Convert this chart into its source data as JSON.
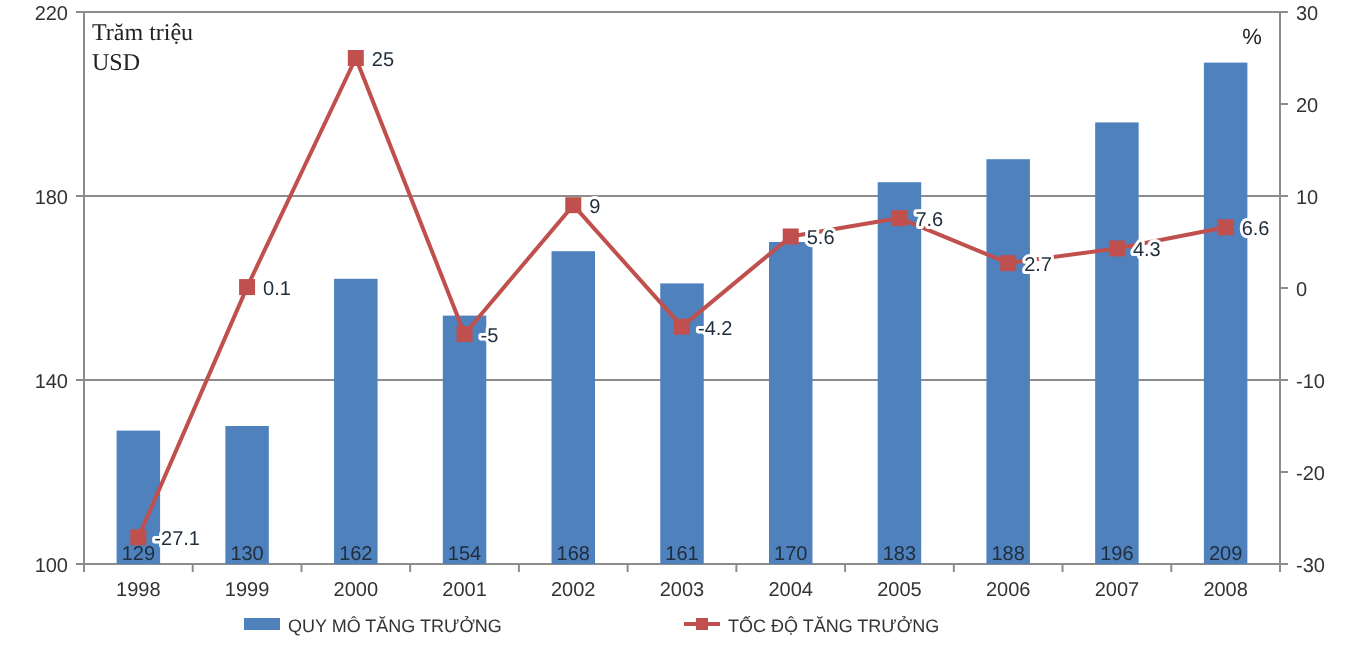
{
  "chart_data": {
    "type": "bar",
    "ylabel": "Trăm triệu USD",
    "y2label": "%",
    "categories": [
      "1998",
      "1999",
      "2000",
      "2001",
      "2002",
      "2003",
      "2004",
      "2005",
      "2006",
      "2007",
      "2008"
    ],
    "series": [
      {
        "name": "QUY MÔ TĂNG TRƯỞNG",
        "color": "#4f81bd",
        "values": [
          129,
          130,
          162,
          154,
          168,
          161,
          170,
          183,
          188,
          196,
          209
        ]
      },
      {
        "name": "TỐC ĐỘ TĂNG TRƯỞNG",
        "type": "line",
        "axis": "y2",
        "color": "#c0504d",
        "marker": "square",
        "values": [
          -27.1,
          0.1,
          25,
          -5,
          9,
          -4.2,
          5.6,
          7.6,
          2.7,
          4.3,
          6.6
        ]
      }
    ],
    "ylim": [
      100,
      220
    ],
    "yticks": [
      100,
      140,
      180,
      220
    ],
    "y2lim": [
      -30,
      30
    ],
    "y2ticks": [
      -30,
      -20,
      -10,
      0,
      10,
      20,
      30
    ],
    "grid": "y",
    "legend": "bottom",
    "data_labels": true
  }
}
